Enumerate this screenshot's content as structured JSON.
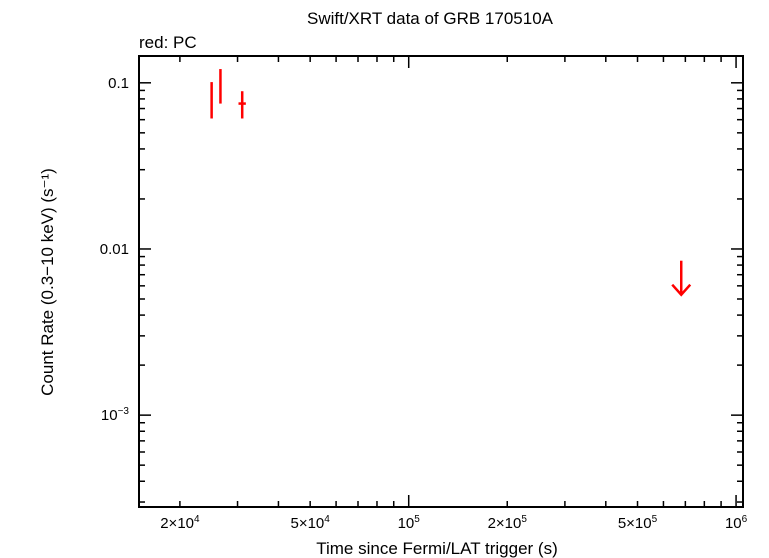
{
  "chart_data": {
    "type": "scatter",
    "title": "Swift/XRT data of GRB 170510A",
    "subtitle": "red: PC",
    "xlabel": "Time since Fermi/LAT trigger (s)",
    "ylabel": "Count Rate (0.3−10 keV) (s⁻¹)",
    "xscale": "log",
    "yscale": "log",
    "xlim": [
      15000,
      1050000
    ],
    "ylim": [
      0.00028,
      0.145
    ],
    "x_ticks": [
      {
        "value": 20000,
        "label_base": "2×10",
        "label_exp": "4"
      },
      {
        "value": 50000,
        "label_base": "5×10",
        "label_exp": "4"
      },
      {
        "value": 100000,
        "label_base": "10",
        "label_exp": "5"
      },
      {
        "value": 200000,
        "label_base": "2×10",
        "label_exp": "5"
      },
      {
        "value": 500000,
        "label_base": "5×10",
        "label_exp": "5"
      },
      {
        "value": 1000000,
        "label_base": "10",
        "label_exp": "6"
      }
    ],
    "y_ticks": [
      {
        "value": 0.1,
        "label_base": "0.1",
        "label_exp": ""
      },
      {
        "value": 0.01,
        "label_base": "0.01",
        "label_exp": ""
      },
      {
        "value": 0.001,
        "label_base": "10",
        "label_exp": "−3"
      }
    ],
    "grid": false,
    "series": [
      {
        "name": "PC",
        "color": "#ff0000",
        "points": [
          {
            "x": 25000,
            "y": 0.081,
            "x_lo": 24900,
            "x_hi": 25100,
            "y_lo": 0.061,
            "y_hi": 0.101
          },
          {
            "x": 26600,
            "y": 0.098,
            "x_lo": 26500,
            "x_hi": 26700,
            "y_lo": 0.075,
            "y_hi": 0.121
          },
          {
            "x": 31000,
            "y": 0.075,
            "x_lo": 30200,
            "x_hi": 31800,
            "y_lo": 0.061,
            "y_hi": 0.089
          }
        ],
        "upper_limits": [
          {
            "x": 680000,
            "y": 0.0085
          }
        ]
      }
    ]
  }
}
